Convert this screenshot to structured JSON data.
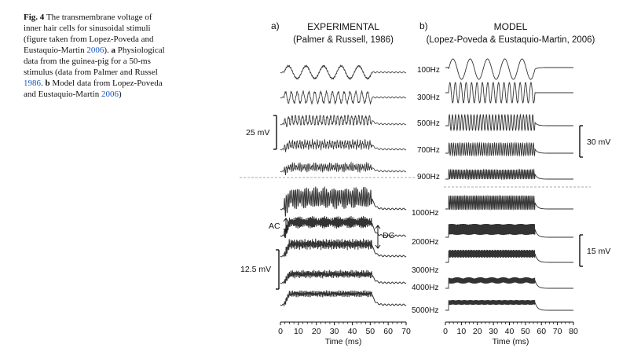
{
  "caption": {
    "fig_label": "Fig. 4",
    "text_1": "The transmembrane voltage of inner hair cells for sinusoidal stimuli (figure taken from Lopez-Poveda and Eustaquio-Martin ",
    "ref_1": "2006",
    "text_2": "). ",
    "a_label": "a",
    "text_3": " Physiological data from the guinea-pig for a 50-ms stimulus (data from Palmer and Russel ",
    "ref_2": "1986",
    "text_4": ". ",
    "b_label": "b",
    "text_5": " Model data from Lopez-Poveda and Eustaquio-Martin ",
    "ref_3": "2006",
    "text_6": ")"
  },
  "panel_a": {
    "label": "a)",
    "title": "EXPERIMENTAL",
    "subtitle": "(Palmer & Russell, 1986)",
    "scale_top": "25 mV",
    "scale_bottom": "12.5 mV",
    "ac_label": "AC",
    "dc_label": "DC",
    "axis_title": "Time (ms)",
    "ticks": [
      "0",
      "10",
      "20",
      "30",
      "40",
      "50",
      "60",
      "70"
    ]
  },
  "panel_b": {
    "label": "b)",
    "title": "MODEL",
    "subtitle": "(Lopez-Poveda & Eustaquio-Martin, 2006)",
    "scale_top": "30 mV",
    "scale_bottom": "15 mV",
    "axis_title": "Time (ms)",
    "ticks": [
      "0",
      "10",
      "20",
      "30",
      "40",
      "50",
      "60",
      "70",
      "80"
    ]
  },
  "frequencies": [
    "100Hz",
    "300Hz",
    "500Hz",
    "700Hz",
    "900Hz",
    "1000Hz",
    "2000Hz",
    "3000Hz",
    "4000Hz",
    "5000Hz"
  ],
  "chart_data": [
    {
      "type": "line",
      "title": "EXPERIMENTAL",
      "subtitle": "(Palmer & Russell, 1986)",
      "xlabel": "Time (ms)",
      "xlim": [
        0,
        70
      ],
      "stimulus_duration_ms": 50,
      "series": [
        {
          "name": "100Hz"
        },
        {
          "name": "300Hz"
        },
        {
          "name": "500Hz"
        },
        {
          "name": "700Hz"
        },
        {
          "name": "900Hz"
        },
        {
          "name": "1000Hz"
        },
        {
          "name": "2000Hz"
        },
        {
          "name": "3000Hz"
        },
        {
          "name": "4000Hz"
        },
        {
          "name": "5000Hz"
        }
      ],
      "scale_bars_mV": [
        25,
        12.5
      ]
    },
    {
      "type": "line",
      "title": "MODEL",
      "subtitle": "(Lopez-Poveda & Eustaquio-Martin, 2006)",
      "xlabel": "Time (ms)",
      "xlim": [
        0,
        80
      ],
      "stimulus_duration_ms": 56,
      "series": [
        {
          "name": "100Hz"
        },
        {
          "name": "300Hz"
        },
        {
          "name": "500Hz"
        },
        {
          "name": "700Hz"
        },
        {
          "name": "900Hz"
        },
        {
          "name": "1000Hz"
        },
        {
          "name": "2000Hz"
        },
        {
          "name": "3000Hz"
        },
        {
          "name": "4000Hz"
        },
        {
          "name": "5000Hz"
        }
      ],
      "scale_bars_mV": [
        30,
        15
      ]
    }
  ]
}
